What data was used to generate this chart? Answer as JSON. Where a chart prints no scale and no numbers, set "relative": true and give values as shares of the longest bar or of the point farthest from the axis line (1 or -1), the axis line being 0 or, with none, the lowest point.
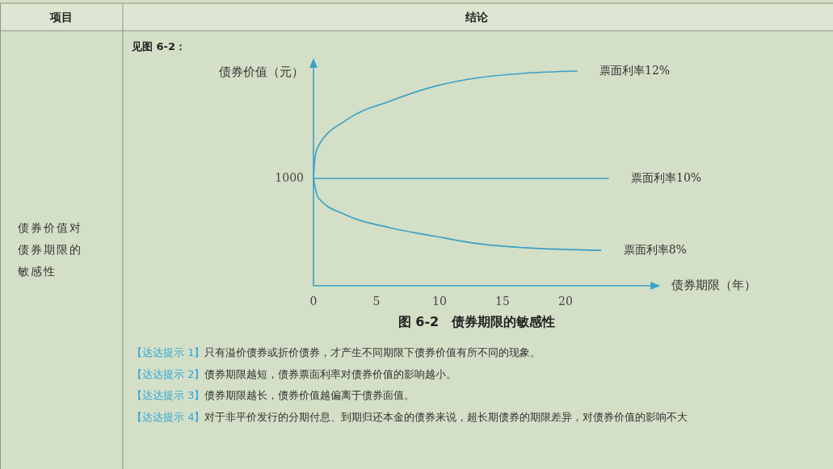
{
  "chart_data": {
    "type": "line",
    "title": "图 6-2　债券期限的敏感性",
    "xlabel": "债券期限（年）",
    "ylabel": "债券价值（元）",
    "relative": true,
    "xlim": [
      0,
      27
    ],
    "xticks": [
      0,
      5,
      10,
      15,
      20
    ],
    "marker": "none",
    "line_style": "solid",
    "annotations": [
      "项目",
      "结论",
      "债券价值对债券期限的敏感性",
      "见图 6-2：",
      "【达达提示 1】只有溢价债券或折价债券，才产生不同期限下债券价值有所不同的现象。",
      "【达达提示 2】债券期限越短，债券票面利率对债券价值的影响越小。",
      "【达达提示 3】债券期限越长，债券价值越偏离于债券面值。",
      "【达达提示 4】对于非平价发行的分期付息、到期归还本金的债券来说，超长期债券的期限差异，对债券价值的影响不大",
      "1000"
    ],
    "series": [
      {
        "name": "票面利率12%",
        "color": "#3aa0c8",
        "x": [
          0,
          0.13,
          0.38,
          2.56,
          6.09,
          9.68,
          13.2,
          16.8,
          20.9
        ],
        "values": [
          0.5,
          0.6,
          0.65,
          0.77,
          0.86,
          0.93,
          0.97,
          0.99,
          1
        ]
      },
      {
        "name": "票面利率10%",
        "color": "#3aa0c8",
        "x": [
          0,
          23.4
        ],
        "values": [
          0.5,
          0.5
        ]
      },
      {
        "name": "票面利率8%",
        "color": "#3aa0c8",
        "x": [
          0,
          0.38,
          2.56,
          6.09,
          9.68,
          13.2,
          16.8,
          22.8
        ],
        "values": [
          0.5,
          0.41,
          0.33,
          0.27,
          0.23,
          0.195,
          0.177,
          0.165
        ]
      }
    ]
  }
}
